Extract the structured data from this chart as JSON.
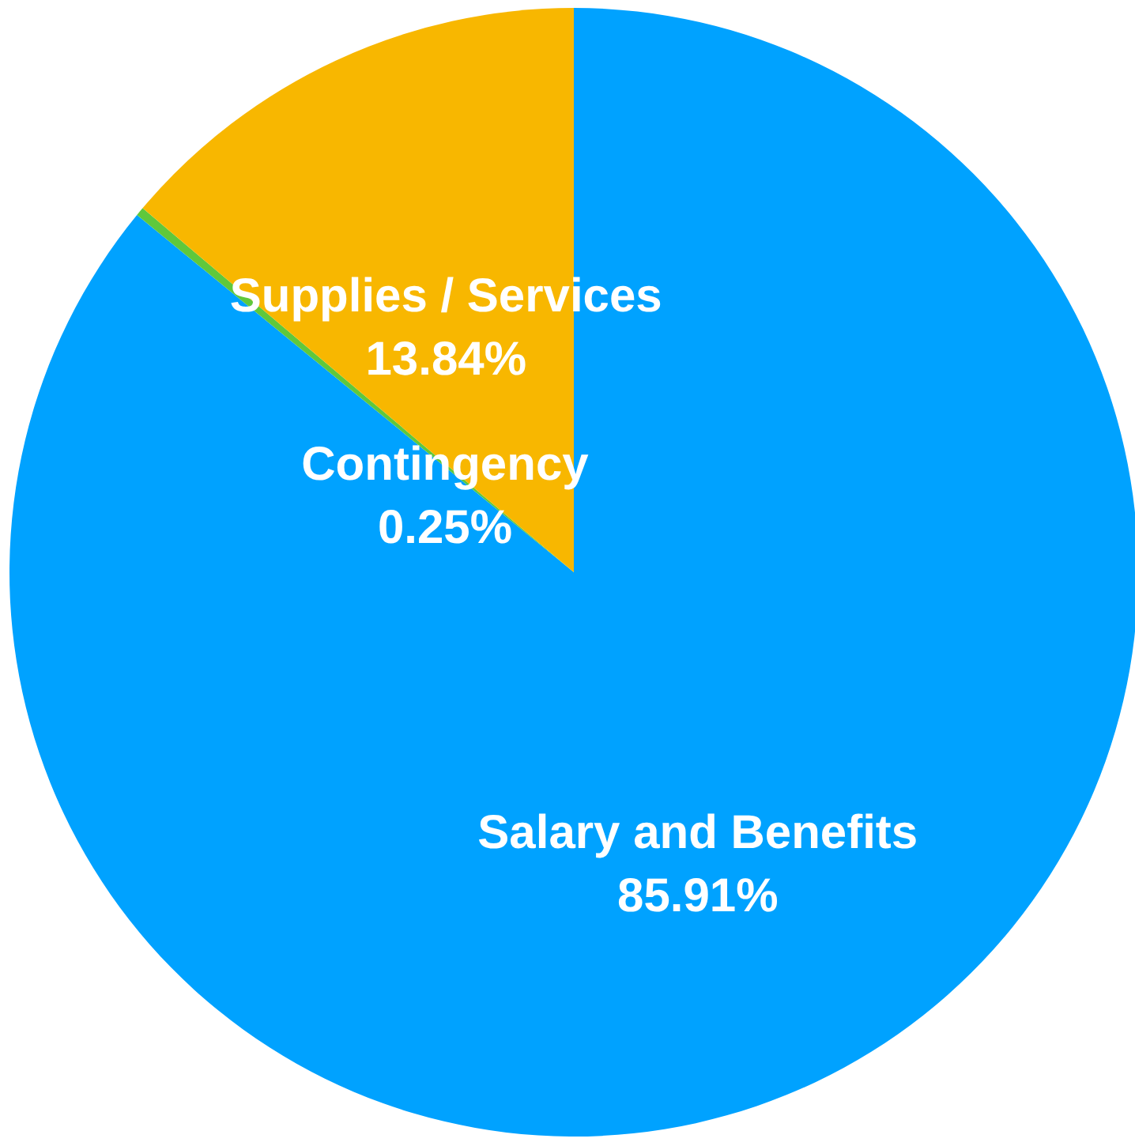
{
  "chart_data": {
    "type": "pie",
    "categories": [
      "Salary and Benefits",
      "Contingency",
      "Supplies / Services"
    ],
    "values": [
      85.91,
      0.25,
      13.84
    ],
    "colors": [
      "#00a2ff",
      "#5fc83c",
      "#f8b700"
    ],
    "value_labels": [
      "85.91%",
      "0.25%",
      "13.84%"
    ]
  }
}
